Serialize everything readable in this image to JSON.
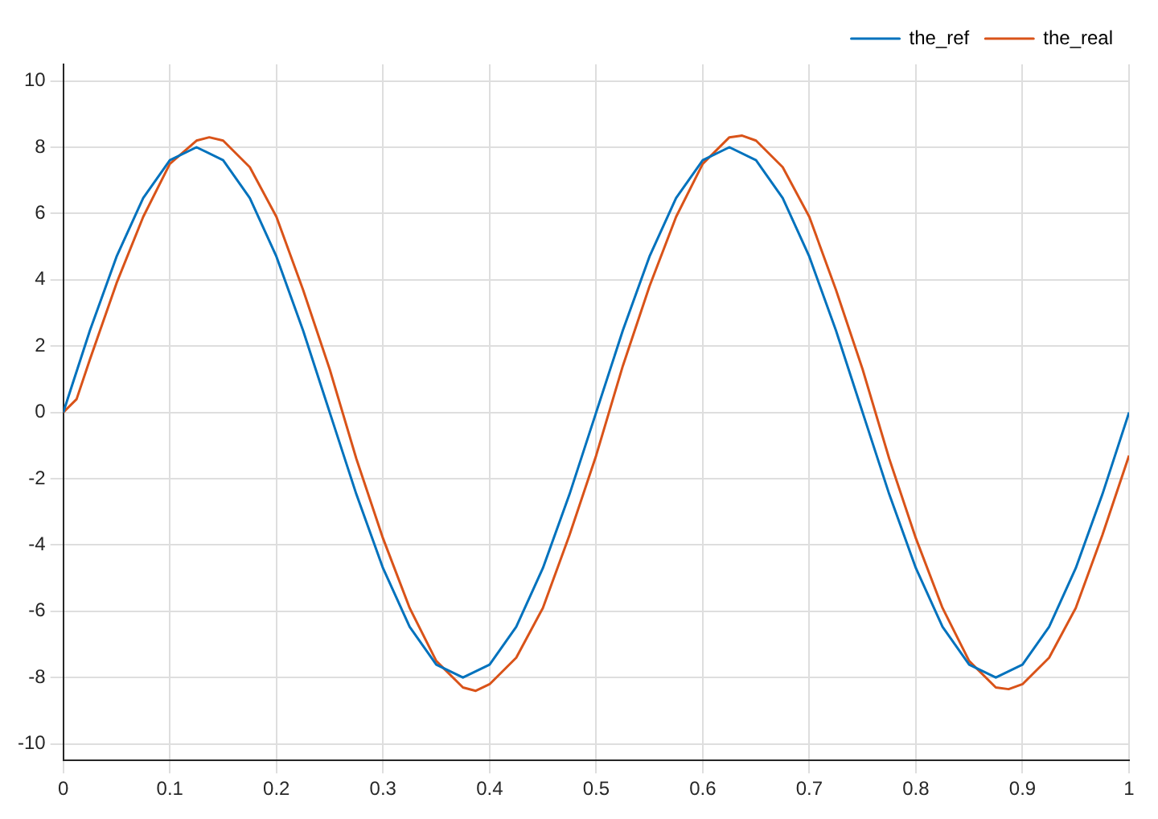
{
  "chart_data": {
    "type": "line",
    "xlim": [
      0,
      1
    ],
    "ylim": [
      -10.5,
      10.5
    ],
    "xticks": [
      0,
      0.1,
      0.2,
      0.3,
      0.4,
      0.5,
      0.6,
      0.7,
      0.8,
      0.9,
      1
    ],
    "yticks": [
      -10,
      -8,
      -6,
      -4,
      -2,
      0,
      2,
      4,
      6,
      8,
      10
    ],
    "grid": true,
    "legend": "top right",
    "marker": "none",
    "line_style": "solid",
    "series": [
      {
        "name": "the_ref",
        "color": "#0072bd",
        "x": [
          0,
          0.025,
          0.05,
          0.075,
          0.1,
          0.125,
          0.15,
          0.175,
          0.2,
          0.225,
          0.25,
          0.275,
          0.3,
          0.325,
          0.35,
          0.375,
          0.4,
          0.425,
          0.45,
          0.475,
          0.5,
          0.525,
          0.55,
          0.575,
          0.6,
          0.625,
          0.65,
          0.675,
          0.7,
          0.725,
          0.75,
          0.775,
          0.8,
          0.825,
          0.85,
          0.875,
          0.9,
          0.925,
          0.95,
          0.975,
          1
        ],
        "values": [
          0,
          2.47,
          4.7,
          6.47,
          7.61,
          8,
          7.61,
          6.47,
          4.7,
          2.47,
          0,
          -2.47,
          -4.7,
          -6.47,
          -7.61,
          -8,
          -7.61,
          -6.47,
          -4.7,
          -2.47,
          0,
          2.47,
          4.7,
          6.47,
          7.61,
          8,
          7.61,
          6.47,
          4.7,
          2.47,
          0,
          -2.47,
          -4.7,
          -6.47,
          -7.61,
          -8,
          -7.61,
          -6.47,
          -4.7,
          -2.47,
          0
        ]
      },
      {
        "name": "the_real",
        "color": "#d95319",
        "x": [
          0,
          0.0125,
          0.025,
          0.05,
          0.075,
          0.1,
          0.125,
          0.137,
          0.15,
          0.175,
          0.2,
          0.225,
          0.25,
          0.275,
          0.3,
          0.325,
          0.35,
          0.375,
          0.387,
          0.4,
          0.425,
          0.45,
          0.475,
          0.5,
          0.525,
          0.55,
          0.575,
          0.6,
          0.625,
          0.637,
          0.65,
          0.675,
          0.7,
          0.725,
          0.75,
          0.775,
          0.8,
          0.825,
          0.85,
          0.875,
          0.887,
          0.9,
          0.925,
          0.95,
          0.975,
          1
        ],
        "values": [
          0,
          0.4,
          1.6,
          3.9,
          5.9,
          7.5,
          8.2,
          8.3,
          8.2,
          7.4,
          5.9,
          3.7,
          1.3,
          -1.4,
          -3.8,
          -5.9,
          -7.5,
          -8.3,
          -8.4,
          -8.2,
          -7.4,
          -5.9,
          -3.7,
          -1.3,
          1.4,
          3.8,
          5.9,
          7.5,
          8.3,
          8.35,
          8.2,
          7.4,
          5.9,
          3.7,
          1.3,
          -1.4,
          -3.8,
          -5.9,
          -7.5,
          -8.3,
          -8.35,
          -8.2,
          -7.4,
          -5.9,
          -3.7,
          -1.3
        ]
      }
    ]
  }
}
